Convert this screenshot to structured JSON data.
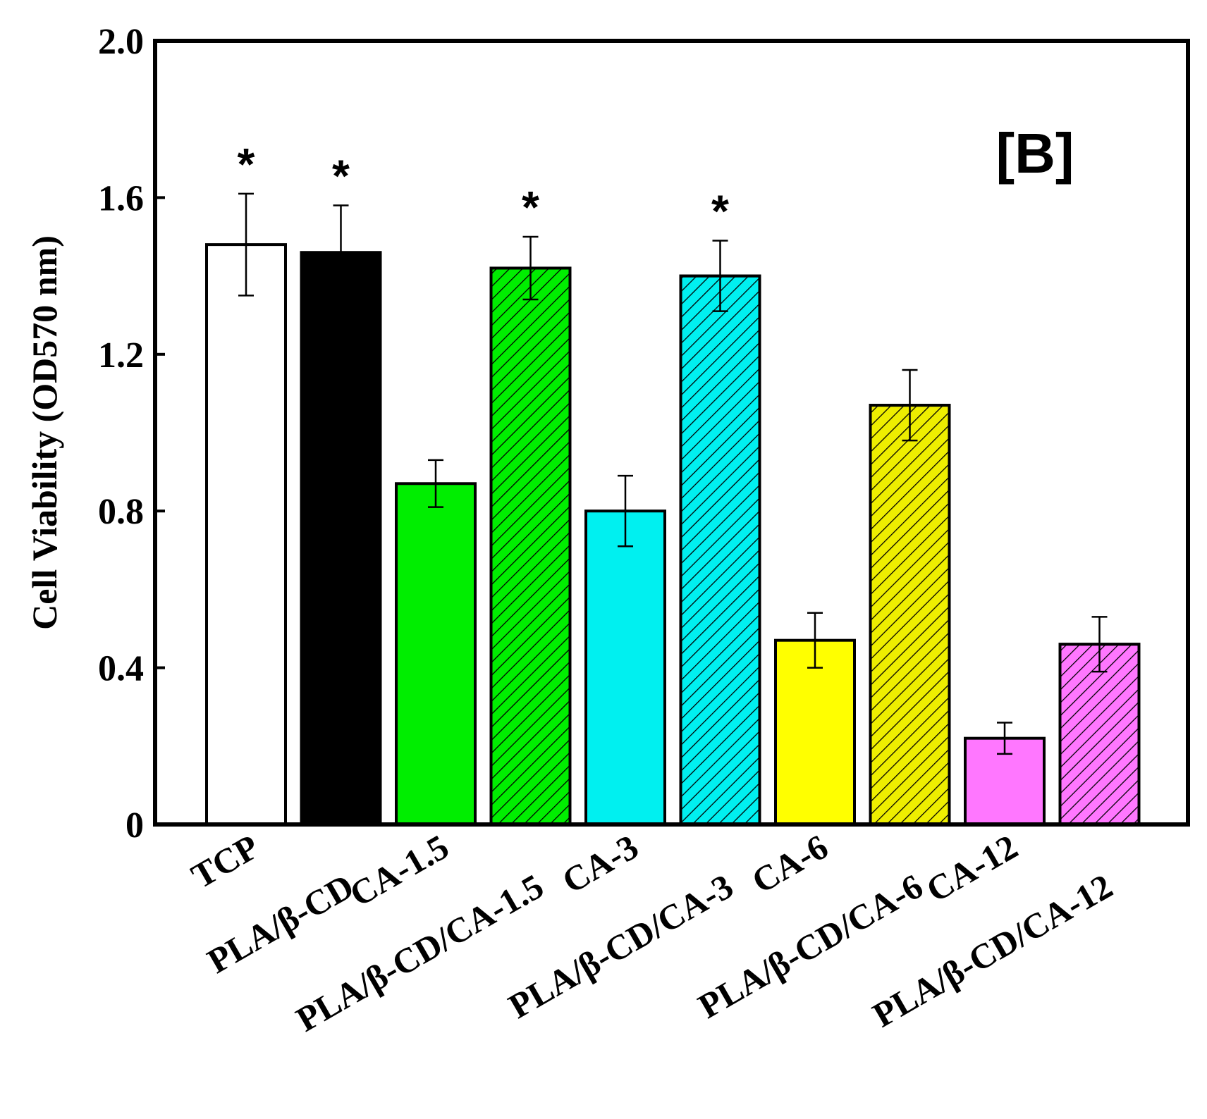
{
  "chart_data": {
    "type": "bar",
    "panel_label": "[B]",
    "ylabel": "Cell Viability (OD570 nm)",
    "xlabel": "",
    "ylim": [
      0,
      2.0
    ],
    "yticks": [
      "0",
      "0.4",
      "0.8",
      "1.2",
      "1.6",
      "2.0"
    ],
    "ytick_values": [
      0,
      0.4,
      0.8,
      1.2,
      1.6,
      2.0
    ],
    "categories": [
      "TCP",
      "PLA/β-CD",
      "CA-1.5",
      "PLA/β-CD/CA-1.5",
      "CA-3",
      "PLA/β-CD/CA-3",
      "CA-6",
      "PLA/β-CD/CA-6",
      "CA-12",
      "PLA/β-CD/CA-12"
    ],
    "values": [
      1.48,
      1.46,
      0.87,
      1.42,
      0.8,
      1.4,
      0.47,
      1.07,
      0.22,
      0.46
    ],
    "errors": [
      0.13,
      0.12,
      0.06,
      0.08,
      0.09,
      0.09,
      0.07,
      0.09,
      0.04,
      0.07
    ],
    "significance": [
      "*",
      "*",
      "",
      "*",
      "",
      "*",
      "",
      "",
      "",
      ""
    ],
    "colors": [
      "#ffffff",
      "#000000",
      "#00ee00",
      "#00ee00",
      "#00f0f0",
      "#00f0f0",
      "#ffff00",
      "#eeee00",
      "#ff77ff",
      "#ff77ff"
    ],
    "hatched": [
      false,
      false,
      false,
      true,
      false,
      true,
      false,
      true,
      false,
      true
    ],
    "grid": false,
    "legend": "none"
  }
}
